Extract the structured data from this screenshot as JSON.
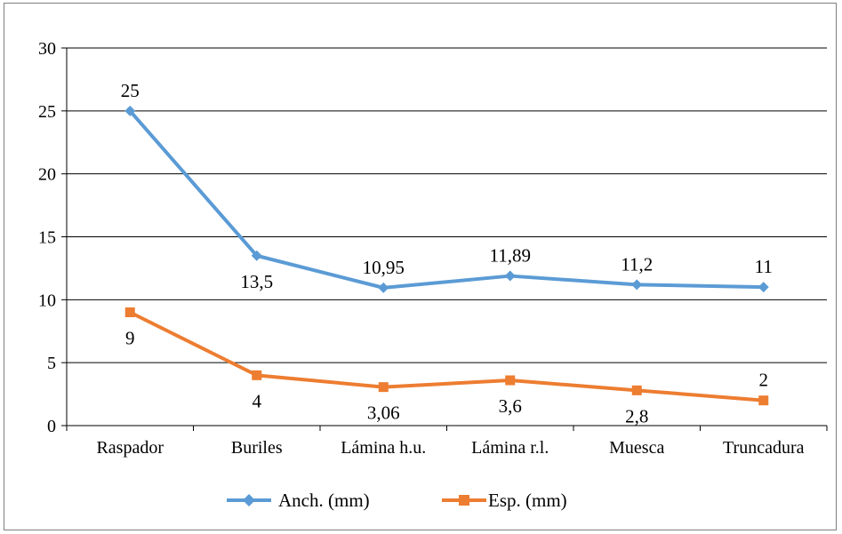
{
  "chart_data": {
    "type": "line",
    "categories": [
      "Raspador",
      "Buriles",
      "Lámina h.u.",
      "Lámina r.l.",
      "Muesca",
      "Truncadura"
    ],
    "series": [
      {
        "name": "Anch. (mm)",
        "values": [
          25,
          13.5,
          10.95,
          11.89,
          11.2,
          11
        ],
        "labels": [
          "25",
          "13,5",
          "10,95",
          "11,89",
          "11,2",
          "11"
        ],
        "color": "#5b9bd5",
        "marker": "diamond"
      },
      {
        "name": "Esp. (mm)",
        "values": [
          9,
          4,
          3.06,
          3.6,
          2.8,
          2
        ],
        "labels": [
          "9",
          "4",
          "3,06",
          "3,6",
          "2,8",
          "2"
        ],
        "color": "#ed7d31",
        "marker": "square"
      }
    ],
    "ylim": [
      0,
      30
    ],
    "yticks": [
      0,
      5,
      10,
      15,
      20,
      25,
      30
    ],
    "grid": true,
    "legend": "bottom"
  }
}
